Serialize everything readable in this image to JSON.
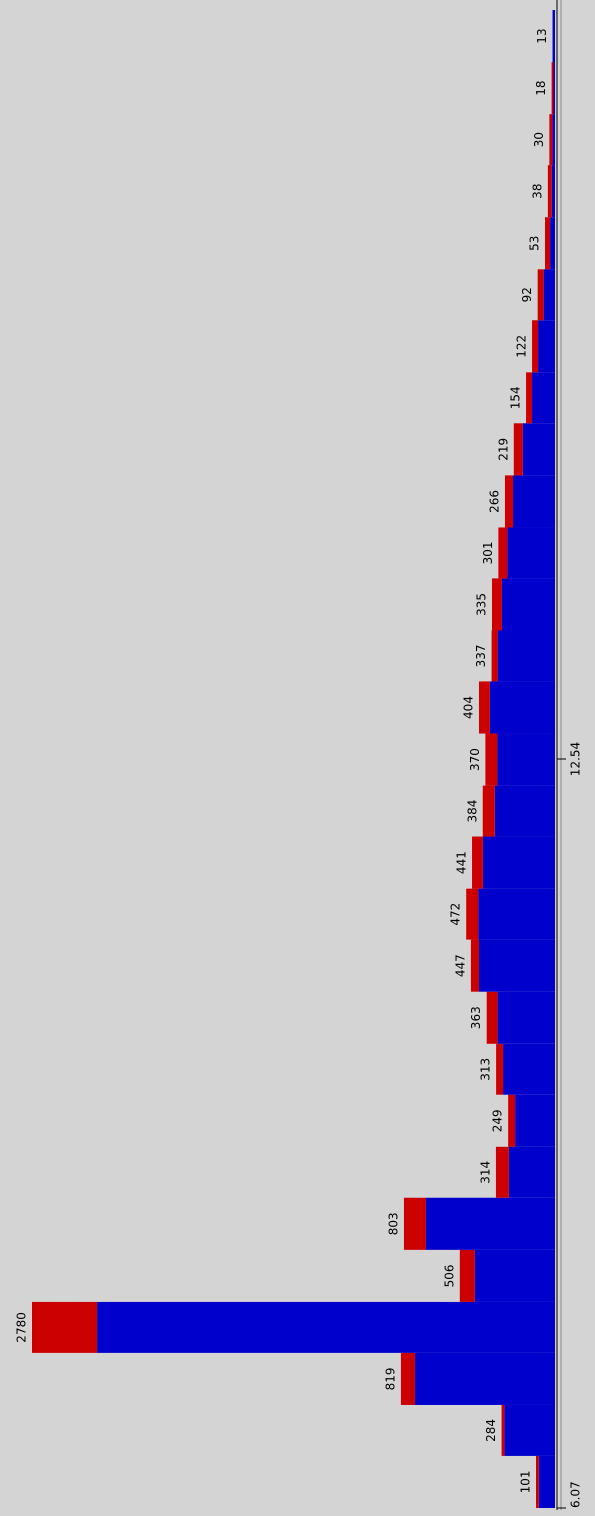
{
  "chart_data": {
    "type": "histogram",
    "orientation": "rotated",
    "bins": [
      6.07,
      6.52,
      6.96,
      7.41,
      7.85,
      8.3,
      8.75,
      9.19,
      9.64,
      10.08,
      10.53,
      10.98,
      11.42,
      11.87,
      12.31,
      12.76,
      13.21,
      13.65,
      14.1,
      14.54,
      14.99,
      15.44,
      15.88,
      16.33,
      16.77,
      17.22,
      17.67,
      18.11,
      18.56,
      19.01
    ],
    "series": [
      {
        "color": "#0000cc",
        "values": [
          86,
          269,
          744,
          2434,
          426,
          686,
          245,
          212,
          276,
          305,
          404,
          408,
          383,
          320,
          306,
          346,
          305,
          282,
          253,
          223,
          171,
          122,
          90,
          60,
          26,
          17,
          14,
          8,
          13
        ]
      },
      {
        "color": "#cc0000",
        "values": [
          15,
          15,
          75,
          346,
          80,
          117,
          69,
          37,
          37,
          58,
          43,
          64,
          58,
          64,
          64,
          58,
          32,
          53,
          48,
          43,
          48,
          32,
          32,
          32,
          27,
          21,
          16,
          10,
          0
        ]
      }
    ],
    "totals": [
      101,
      284,
      819,
      2780,
      506,
      803,
      314,
      249,
      313,
      363,
      447,
      472,
      441,
      384,
      370,
      404,
      337,
      335,
      301,
      266,
      219,
      154,
      122,
      92,
      53,
      38,
      30,
      18,
      13
    ],
    "xlim": [
      6.07,
      19.01
    ],
    "xticks": [
      6.07,
      12.54
    ],
    "ylim": [
      0,
      2780
    ]
  }
}
